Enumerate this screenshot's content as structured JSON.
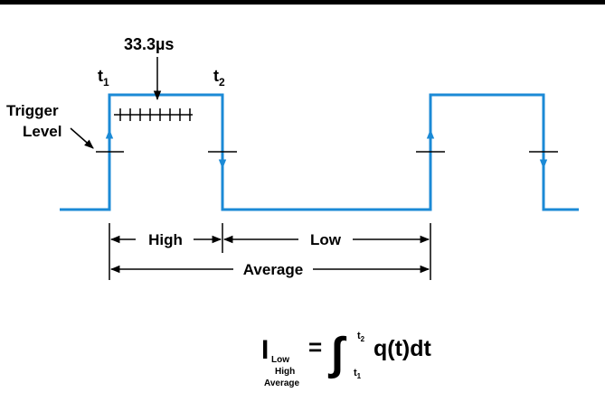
{
  "labels": {
    "sample_interval": "33.3µs",
    "t1_base": "t",
    "t1_sub": "1",
    "t2_base": "t",
    "t2_sub": "2",
    "trigger_line1": "Trigger",
    "trigger_line2": "Level",
    "high": "High",
    "low": "Low",
    "average": "Average"
  },
  "formula": {
    "lhs_symbol": "I",
    "lhs_sub_low": "Low",
    "lhs_sub_high": "High",
    "lhs_sub_average": "Average",
    "equals": "=",
    "integral_sign": "∫",
    "upper_limit_base": "t",
    "upper_limit_sub": "2",
    "lower_limit_base": "t",
    "lower_limit_sub": "1",
    "integrand": "q(t)dt"
  },
  "colors": {
    "waveform": "#1b8ad6",
    "ink": "#000000"
  }
}
